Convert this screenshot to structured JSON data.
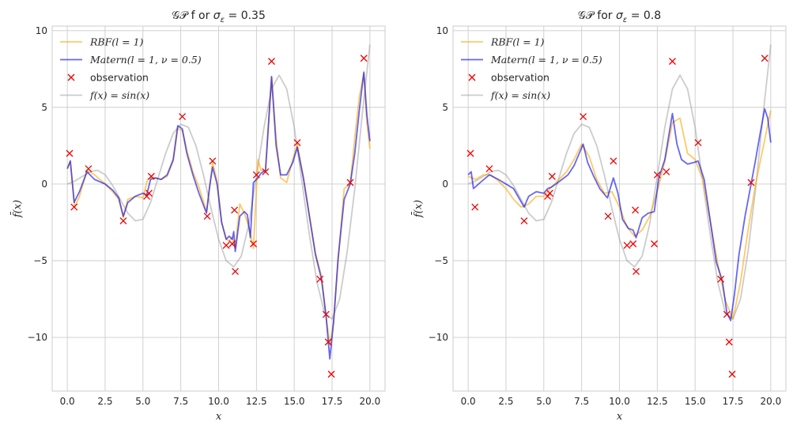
{
  "figure": {
    "background": "#ffffff",
    "plot_background": "#ffffff",
    "grid_color": "#cccccc",
    "spine_color": "#cccccc"
  },
  "chart_data": [
    {
      "type": "line",
      "title": "𝒢𝒫 f or σ_ε = 0.35",
      "xlabel": "x",
      "ylabel": "f̄(x)",
      "xlim": [
        -1.0,
        21.0
      ],
      "ylim": [
        -13.5,
        10.3
      ],
      "xticks": [
        0.0,
        2.5,
        5.0,
        7.5,
        10.0,
        12.5,
        15.0,
        17.5,
        20.0
      ],
      "xtick_labels": [
        "0.0",
        "2.5",
        "5.0",
        "7.5",
        "10.0",
        "12.5",
        "15.0",
        "17.5",
        "20.0"
      ],
      "yticks": [
        10,
        5,
        0,
        -5,
        -10
      ],
      "ytick_labels": [
        "10",
        "5",
        "0",
        "−5",
        "−10"
      ],
      "grid": true,
      "legend_position": "top-left",
      "legend": [
        {
          "label": "RBF(l = 1)",
          "color": "#ffa500",
          "kind": "line"
        },
        {
          "label": "Matern(l = 1, ν = 0.5)",
          "color": "#0000ee",
          "kind": "line"
        },
        {
          "label": "observation",
          "color": "#ee0000",
          "kind": "marker"
        },
        {
          "label": "f(x) = sin(x)",
          "color": "#999999",
          "kind": "line"
        }
      ],
      "series": [
        {
          "name": "RBF(l = 1)",
          "color": "#ffa500",
          "x": [
            0.0,
            0.2,
            0.5,
            0.8,
            1.3,
            1.8,
            2.5,
            3.0,
            3.4,
            3.7,
            4.0,
            4.5,
            5.0,
            5.3,
            5.5,
            5.8,
            6.2,
            6.6,
            7.0,
            7.3,
            7.6,
            7.9,
            8.3,
            8.7,
            9.2,
            9.4,
            9.6,
            9.9,
            10.2,
            10.5,
            10.7,
            10.9,
            11.1,
            11.4,
            11.7,
            12.0,
            12.3,
            12.6,
            12.8,
            13.1,
            13.5,
            13.8,
            14.1,
            14.5,
            14.9,
            15.2,
            15.6,
            16.0,
            16.4,
            16.8,
            17.1,
            17.35,
            17.6,
            17.9,
            18.3,
            18.7,
            19.0,
            19.3,
            19.6,
            19.8,
            20.0
          ],
          "y": [
            1.0,
            1.5,
            -1.5,
            -0.8,
            0.9,
            0.6,
            0.0,
            -0.5,
            -1.0,
            -2.2,
            -1.0,
            -0.8,
            -0.9,
            0.3,
            0.4,
            0.4,
            0.3,
            0.5,
            1.5,
            3.6,
            3.5,
            2.2,
            0.8,
            -0.2,
            -1.8,
            -0.3,
            1.4,
            0.2,
            -2.5,
            -3.6,
            -3.7,
            -3.5,
            -4.2,
            -1.3,
            -1.9,
            -2.8,
            -4.2,
            1.6,
            0.9,
            0.8,
            7.0,
            3.0,
            0.4,
            0.1,
            1.6,
            2.6,
            0.5,
            -2.0,
            -4.5,
            -6.0,
            -8.6,
            -10.5,
            -9.0,
            -5.0,
            -0.3,
            0.0,
            3.0,
            5.7,
            7.2,
            4.0,
            2.3
          ]
        },
        {
          "name": "Matern(l = 1, ν = 0.5)",
          "color": "#0000ee",
          "x": [
            0.0,
            0.2,
            0.45,
            0.8,
            1.3,
            1.8,
            2.5,
            3.0,
            3.4,
            3.7,
            4.0,
            4.5,
            5.0,
            5.25,
            5.5,
            5.8,
            6.2,
            6.6,
            7.0,
            7.3,
            7.6,
            7.9,
            8.3,
            8.7,
            9.2,
            9.4,
            9.6,
            9.9,
            10.2,
            10.5,
            10.7,
            10.9,
            11.0,
            11.1,
            11.4,
            11.7,
            11.9,
            12.1,
            12.3,
            12.6,
            12.8,
            13.1,
            13.5,
            13.8,
            14.1,
            14.5,
            14.9,
            15.2,
            15.6,
            16.0,
            16.4,
            16.8,
            17.1,
            17.35,
            17.6,
            17.9,
            18.3,
            18.7,
            19.0,
            19.3,
            19.6,
            19.8,
            20.0
          ],
          "y": [
            1.0,
            1.5,
            -1.2,
            -0.5,
            0.8,
            0.3,
            0.0,
            -0.4,
            -0.9,
            -2.1,
            -1.2,
            -0.8,
            -0.6,
            -0.7,
            0.3,
            0.4,
            0.3,
            0.6,
            1.6,
            3.8,
            3.6,
            2.0,
            0.6,
            -0.6,
            -1.9,
            -0.2,
            1.1,
            0.0,
            -2.5,
            -3.6,
            -3.4,
            -3.6,
            -3.1,
            -4.4,
            -2.1,
            -1.8,
            -2.0,
            -3.5,
            0.1,
            0.4,
            0.7,
            0.9,
            7.0,
            2.5,
            0.6,
            0.6,
            1.4,
            2.4,
            0.4,
            -2.1,
            -4.6,
            -6.2,
            -8.6,
            -11.4,
            -9.0,
            -4.8,
            -1.0,
            0.0,
            2.0,
            4.8,
            7.3,
            4.5,
            2.8
          ]
        },
        {
          "name": "f(x) = sin(x)",
          "color": "#999999",
          "fn": "4sin(x)+0.2x^1.6-0.4x (sampled)",
          "x": [
            0.0,
            0.5,
            1.0,
            1.5,
            2.0,
            2.5,
            3.0,
            3.5,
            4.0,
            4.5,
            5.0,
            5.5,
            6.0,
            6.5,
            7.0,
            7.5,
            8.0,
            8.5,
            9.0,
            9.5,
            10.0,
            10.5,
            11.0,
            11.5,
            12.0,
            12.5,
            13.0,
            13.5,
            14.0,
            14.5,
            15.0,
            15.5,
            16.0,
            16.5,
            17.0,
            17.5,
            18.0,
            18.5,
            19.0,
            19.5,
            20.0
          ],
          "y": [
            0.0,
            0.2,
            0.5,
            0.8,
            0.9,
            0.6,
            -0.1,
            -1.0,
            -1.9,
            -2.4,
            -2.3,
            -1.2,
            0.4,
            2.0,
            3.3,
            3.9,
            3.7,
            2.5,
            0.6,
            -1.6,
            -3.6,
            -5.0,
            -5.4,
            -4.7,
            -2.6,
            0.5,
            3.7,
            6.2,
            7.1,
            6.2,
            3.7,
            0.2,
            -3.3,
            -6.4,
            -8.4,
            -8.8,
            -7.5,
            -4.4,
            -0.3,
            4.6,
            9.1
          ]
        }
      ],
      "observations": {
        "x": [
          0.15,
          0.45,
          1.4,
          3.7,
          5.25,
          5.4,
          5.55,
          7.6,
          9.25,
          9.6,
          10.5,
          10.9,
          11.05,
          11.1,
          12.3,
          12.5,
          13.1,
          13.5,
          15.2,
          16.7,
          17.1,
          17.25,
          17.45,
          18.7,
          19.6
        ],
        "y": [
          2.0,
          -1.5,
          1.0,
          -2.4,
          -0.8,
          -0.6,
          0.5,
          4.4,
          -2.1,
          1.5,
          -4.0,
          -3.9,
          -1.7,
          -5.7,
          -3.9,
          0.6,
          0.8,
          8.0,
          2.7,
          -6.2,
          -8.5,
          -10.3,
          -12.4,
          0.1,
          8.2
        ]
      }
    },
    {
      "type": "line",
      "title": "𝒢𝒫  for σ_ε = 0.8",
      "xlabel": "x",
      "ylabel": "f̄(x)",
      "xlim": [
        -1.0,
        21.0
      ],
      "ylim": [
        -13.5,
        10.3
      ],
      "xticks": [
        0.0,
        2.5,
        5.0,
        7.5,
        10.0,
        12.5,
        15.0,
        17.5,
        20.0
      ],
      "xtick_labels": [
        "0.0",
        "2.5",
        "5.0",
        "7.5",
        "10.0",
        "12.5",
        "15.0",
        "17.5",
        "20.0"
      ],
      "yticks": [
        10,
        5,
        0,
        -5,
        -10
      ],
      "ytick_labels": [
        "10",
        "5",
        "0",
        "−5",
        "−10"
      ],
      "grid": true,
      "legend_position": "top-left",
      "legend": [
        {
          "label": "RBF(l = 1)",
          "color": "#ffa500",
          "kind": "line"
        },
        {
          "label": "Matern(l = 1, ν = 0.5)",
          "color": "#0000ee",
          "kind": "line"
        },
        {
          "label": "observation",
          "color": "#ee0000",
          "kind": "marker"
        },
        {
          "label": "f(x) = sin(x)",
          "color": "#999999",
          "kind": "line"
        }
      ],
      "series": [
        {
          "name": "RBF(l = 1)",
          "color": "#ffa500",
          "x": [
            0.0,
            0.5,
            1.0,
            1.5,
            2.0,
            2.5,
            3.0,
            3.5,
            4.0,
            4.5,
            5.0,
            5.5,
            6.0,
            6.5,
            7.0,
            7.5,
            8.0,
            8.5,
            9.0,
            9.5,
            10.0,
            10.5,
            11.0,
            11.5,
            12.0,
            12.5,
            13.0,
            13.5,
            14.0,
            14.5,
            15.0,
            15.5,
            16.0,
            16.5,
            17.0,
            17.5,
            18.0,
            18.5,
            19.0,
            19.5,
            20.0
          ],
          "y": [
            0.5,
            0.3,
            0.6,
            0.6,
            0.2,
            -0.3,
            -1.0,
            -1.5,
            -1.3,
            -0.8,
            -0.8,
            -0.2,
            0.3,
            0.8,
            1.6,
            2.6,
            1.8,
            0.3,
            -0.6,
            -0.5,
            -1.5,
            -2.8,
            -3.4,
            -3.0,
            -2.1,
            -0.5,
            1.5,
            4.0,
            4.3,
            2.0,
            1.6,
            0.3,
            -2.4,
            -5.2,
            -7.6,
            -8.8,
            -6.4,
            -3.0,
            0.0,
            2.4,
            4.8
          ]
        },
        {
          "name": "Matern(l = 1, ν = 0.5)",
          "color": "#0000ee",
          "x": [
            0.0,
            0.2,
            0.35,
            0.8,
            1.4,
            2.0,
            2.5,
            3.0,
            3.7,
            4.0,
            4.5,
            5.0,
            5.25,
            5.5,
            5.8,
            6.2,
            6.6,
            7.0,
            7.3,
            7.6,
            7.9,
            8.3,
            8.7,
            9.2,
            9.6,
            9.9,
            10.2,
            10.6,
            10.9,
            11.1,
            11.5,
            11.9,
            12.3,
            12.6,
            13.0,
            13.5,
            13.8,
            14.1,
            14.5,
            14.9,
            15.2,
            15.6,
            16.0,
            16.4,
            16.8,
            17.1,
            17.35,
            17.6,
            17.9,
            18.3,
            18.7,
            19.0,
            19.3,
            19.6,
            19.8,
            20.0
          ],
          "y": [
            0.6,
            0.8,
            -0.3,
            0.1,
            0.6,
            0.3,
            0.0,
            -0.3,
            -1.5,
            -0.8,
            -0.5,
            -0.6,
            -0.3,
            -0.2,
            0.0,
            0.3,
            0.6,
            1.2,
            1.9,
            2.6,
            1.4,
            0.5,
            -0.3,
            -0.9,
            0.4,
            -0.6,
            -2.3,
            -2.9,
            -3.0,
            -3.5,
            -2.2,
            -1.9,
            -1.8,
            0.4,
            1.6,
            4.6,
            2.6,
            1.6,
            1.3,
            1.4,
            1.5,
            0.3,
            -2.4,
            -5.1,
            -6.3,
            -8.4,
            -8.9,
            -7.2,
            -4.6,
            -2.1,
            0.0,
            1.6,
            3.3,
            4.9,
            4.3,
            2.7
          ]
        },
        {
          "name": "f(x) = sin(x)",
          "color": "#999999",
          "x": [
            0.0,
            0.5,
            1.0,
            1.5,
            2.0,
            2.5,
            3.0,
            3.5,
            4.0,
            4.5,
            5.0,
            5.5,
            6.0,
            6.5,
            7.0,
            7.5,
            8.0,
            8.5,
            9.0,
            9.5,
            10.0,
            10.5,
            11.0,
            11.5,
            12.0,
            12.5,
            13.0,
            13.5,
            14.0,
            14.5,
            15.0,
            15.5,
            16.0,
            16.5,
            17.0,
            17.5,
            18.0,
            18.5,
            19.0,
            19.5,
            20.0
          ],
          "y": [
            0.0,
            0.2,
            0.5,
            0.8,
            0.9,
            0.6,
            -0.1,
            -1.0,
            -1.9,
            -2.4,
            -2.3,
            -1.2,
            0.4,
            2.0,
            3.3,
            3.9,
            3.7,
            2.5,
            0.6,
            -1.6,
            -3.6,
            -5.0,
            -5.4,
            -4.7,
            -2.6,
            0.5,
            3.7,
            6.2,
            7.1,
            6.2,
            3.7,
            0.2,
            -3.3,
            -6.4,
            -8.4,
            -8.8,
            -7.5,
            -4.4,
            -0.3,
            4.6,
            9.1
          ]
        }
      ],
      "observations": {
        "x": [
          0.15,
          0.45,
          1.4,
          3.7,
          5.25,
          5.4,
          5.55,
          7.6,
          9.25,
          9.6,
          10.5,
          10.9,
          11.05,
          11.1,
          12.3,
          12.5,
          13.1,
          13.5,
          15.2,
          16.7,
          17.1,
          17.25,
          17.45,
          18.7,
          19.6
        ],
        "y": [
          2.0,
          -1.5,
          1.0,
          -2.4,
          -0.8,
          -0.6,
          0.5,
          4.4,
          -2.1,
          1.5,
          -4.0,
          -3.9,
          -1.7,
          -5.7,
          -3.9,
          0.6,
          0.8,
          8.0,
          2.7,
          -6.2,
          -8.5,
          -10.3,
          -12.4,
          0.1,
          8.2
        ]
      }
    }
  ]
}
